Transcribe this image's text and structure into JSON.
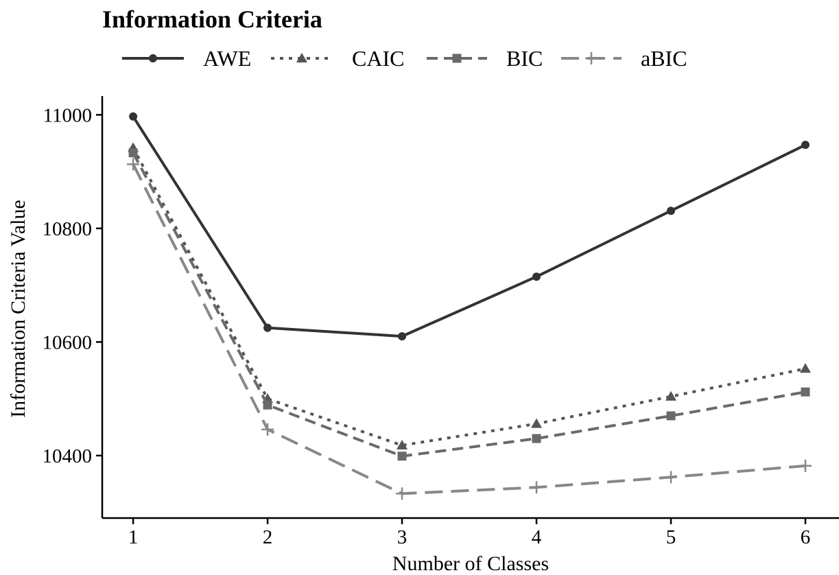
{
  "chart_data": {
    "type": "line",
    "title": "Information Criteria",
    "xlabel": "Number of Classes",
    "ylabel": "Information Criteria Value",
    "x": [
      1,
      2,
      3,
      4,
      5,
      6
    ],
    "xlim": [
      0.77,
      6.25
    ],
    "ylim": [
      10290,
      11033
    ],
    "yticks": [
      10400,
      10600,
      10800,
      11000
    ],
    "grid": false,
    "legend_position": "top",
    "series": [
      {
        "name": "AWE",
        "marker": "circle",
        "dash": "solid",
        "color": "#333333",
        "values": [
          10997,
          10625,
          10610,
          10715,
          10831,
          10947
        ]
      },
      {
        "name": "CAIC",
        "marker": "triangle",
        "dash": "dotted",
        "color": "#555555",
        "values": [
          10942,
          10500,
          10418,
          10456,
          10504,
          10553
        ]
      },
      {
        "name": "BIC",
        "marker": "square",
        "dash": "dashed",
        "color": "#6a6a6a",
        "values": [
          10933,
          10489,
          10399,
          10430,
          10470,
          10512
        ]
      },
      {
        "name": "aBIC",
        "marker": "plus",
        "dash": "long-dashed",
        "color": "#888888",
        "values": [
          10913,
          10446,
          10333,
          10344,
          10362,
          10382
        ]
      }
    ]
  }
}
